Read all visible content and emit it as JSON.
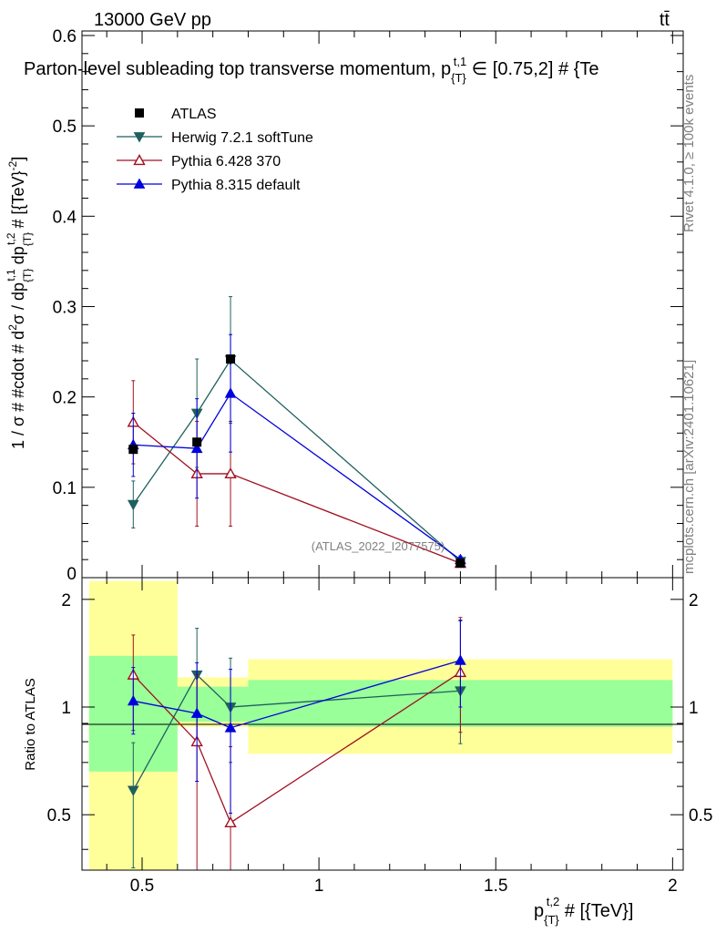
{
  "header": {
    "energy_label": "13000 GeV pp",
    "process_label": "tt̄",
    "title": "Parton-level subleading top transverse momentum, p_{T}^{t,1} ∈ [0.75,2] # {Te",
    "title_main": "Parton-level subleading top transverse momentum, p",
    "title_sub": "{T}",
    "title_sup": "t,1",
    "title_tail": " ∈ [0.75,2] # {Te"
  },
  "side_labels": {
    "rivet": "Rivet 4.1.0, ≥ 100k events",
    "mcplots": "mcplots.cern.ch [arXiv:2401.10621]"
  },
  "watermark": "(ATLAS_2022_I2077575)",
  "colors": {
    "atlas": "#000000",
    "herwig": "#1f5f5f",
    "pythia6": "#a01020",
    "pythia8": "#0000dd",
    "band_inner": "#99ff99",
    "band_outer": "#ffff99"
  },
  "chart_data": [
    {
      "type": "scatter",
      "panel": "main",
      "ylabel": "1 / σ # #cdot # d²σ / dp_{T}^{t,1} dp_{T}^{t,2} # [{TeV}^{-2}]",
      "ylabel_parts": [
        "1 / σ # #cdot # d",
        "2",
        "σ / dp",
        "{T}",
        "t,1",
        " dp",
        "{T}",
        "t,2",
        " # [{TeV}",
        "-2",
        "]"
      ],
      "xlim": [
        0.33,
        2.03
      ],
      "ylim": [
        0,
        0.605
      ],
      "y_ticks": [
        0,
        0.1,
        0.2,
        0.3,
        0.4,
        0.5,
        0.6
      ],
      "y_tick_labels": [
        "0",
        "0.1",
        "0.2",
        "0.3",
        "0.4",
        "0.5",
        "0.6"
      ],
      "legend_position": "top-left",
      "series": [
        {
          "name": "ATLAS",
          "key": "atlas",
          "marker": "square-filled",
          "x": [
            0.475,
            0.655,
            0.75,
            1.4
          ],
          "y": [
            0.142,
            0.15,
            0.242,
            0.016
          ],
          "err": [
            0.0,
            0.0,
            0.0,
            0.0
          ]
        },
        {
          "name": "Herwig 7.2.1 softTune",
          "key": "herwig",
          "marker": "triangle-down-filled",
          "x": [
            0.475,
            0.655,
            0.75,
            1.4
          ],
          "y": [
            0.081,
            0.182,
            0.241,
            0.018
          ],
          "err": [
            0.026,
            0.06,
            0.07,
            0.004
          ]
        },
        {
          "name": "Pythia 6.428 370",
          "key": "pythia6",
          "marker": "triangle-up-open",
          "x": [
            0.475,
            0.655,
            0.75,
            1.4
          ],
          "y": [
            0.172,
            0.115,
            0.115,
            0.016
          ],
          "err": [
            0.046,
            0.058,
            0.058,
            0.003
          ]
        },
        {
          "name": "Pythia 8.315 default",
          "key": "pythia8",
          "marker": "triangle-up-filled",
          "x": [
            0.475,
            0.655,
            0.75,
            1.4
          ],
          "y": [
            0.147,
            0.143,
            0.204,
            0.02
          ],
          "err": [
            0.035,
            0.055,
            0.065,
            0.004
          ]
        }
      ]
    },
    {
      "type": "scatter",
      "panel": "ratio",
      "ylabel": "Ratio to ATLAS",
      "xlabel": "p_{T}^{t,2} # [{TeV}]",
      "xlabel_parts": [
        "p",
        "{T}",
        "t,2",
        " # [{TeV}]"
      ],
      "xlim": [
        0.33,
        2.03
      ],
      "ylim": [
        0.35,
        2.3
      ],
      "x_ticks": [
        0.5,
        1,
        1.5,
        2
      ],
      "x_tick_labels": [
        "0.5",
        "1",
        "1.5",
        "2"
      ],
      "y_ticks": [
        0.5,
        1,
        2
      ],
      "y_tick_labels": [
        "0.5",
        "1",
        "2"
      ],
      "bands": [
        {
          "x_low": 0.35,
          "x_high": 0.6,
          "inner": [
            0.66,
            1.39
          ],
          "outer": [
            0.35,
            2.25
          ]
        },
        {
          "x_low": 0.6,
          "x_high": 0.7,
          "inner": [
            0.91,
            1.14
          ],
          "outer": [
            0.88,
            1.21
          ]
        },
        {
          "x_low": 0.7,
          "x_high": 0.8,
          "inner": [
            0.91,
            1.14
          ],
          "outer": [
            0.88,
            1.21
          ]
        },
        {
          "x_low": 0.8,
          "x_high": 2.0,
          "inner": [
            0.88,
            1.19
          ],
          "outer": [
            0.74,
            1.36
          ]
        }
      ],
      "series": [
        {
          "name": "Herwig 7.2.1 softTune",
          "key": "herwig",
          "marker": "triangle-down-filled",
          "x": [
            0.475,
            0.655,
            0.75,
            1.4
          ],
          "y": [
            0.585,
            1.23,
            1.0,
            1.11
          ],
          "err_low": [
            0.23,
            0.42,
            0.3,
            0.32
          ],
          "err_high": [
            0.21,
            0.43,
            0.37,
            0.63
          ]
        },
        {
          "name": "Pythia 6.428 370",
          "key": "pythia6",
          "marker": "triangle-up-open",
          "x": [
            0.475,
            0.655,
            0.75,
            1.4
          ],
          "y": [
            1.23,
            0.8,
            0.475,
            1.25
          ],
          "err_low": [
            0.37,
            0.5,
            0.22,
            0.4
          ],
          "err_high": [
            0.36,
            0.43,
            0.3,
            0.53
          ]
        },
        {
          "name": "Pythia 8.315 default",
          "key": "pythia8",
          "marker": "triangle-up-filled",
          "x": [
            0.475,
            0.655,
            0.75,
            1.4
          ],
          "y": [
            1.04,
            0.96,
            0.875,
            1.35
          ],
          "err_low": [
            0.2,
            0.34,
            0.37,
            0.35
          ],
          "err_high": [
            0.25,
            0.37,
            0.4,
            0.4
          ]
        }
      ]
    }
  ]
}
